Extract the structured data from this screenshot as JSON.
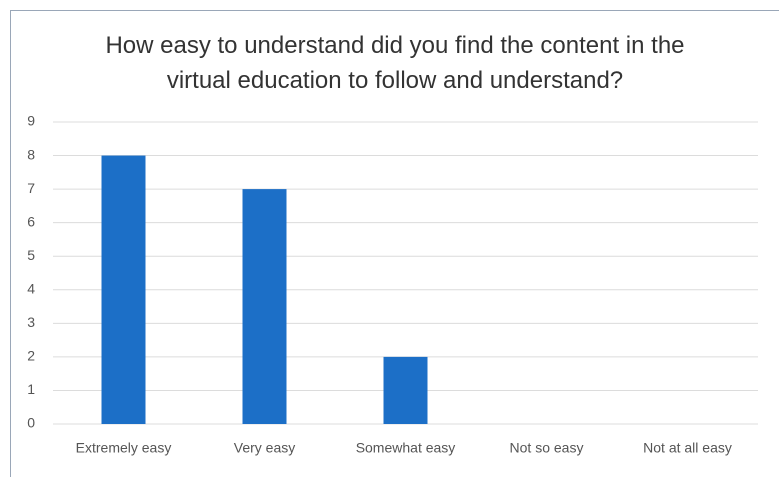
{
  "chart_data": {
    "type": "bar",
    "title": "How easy to understand did you find the content in the virtual education to follow and understand?",
    "categories": [
      "Extremely easy",
      "Very easy",
      "Somewhat easy",
      "Not so easy",
      "Not at all easy"
    ],
    "values": [
      8,
      7,
      2,
      0,
      0
    ],
    "color": "#1c6fc7",
    "ylim": [
      0,
      9
    ],
    "yticks": [
      0,
      1,
      2,
      3,
      4,
      5,
      6,
      7,
      8,
      9
    ],
    "grid": true
  }
}
